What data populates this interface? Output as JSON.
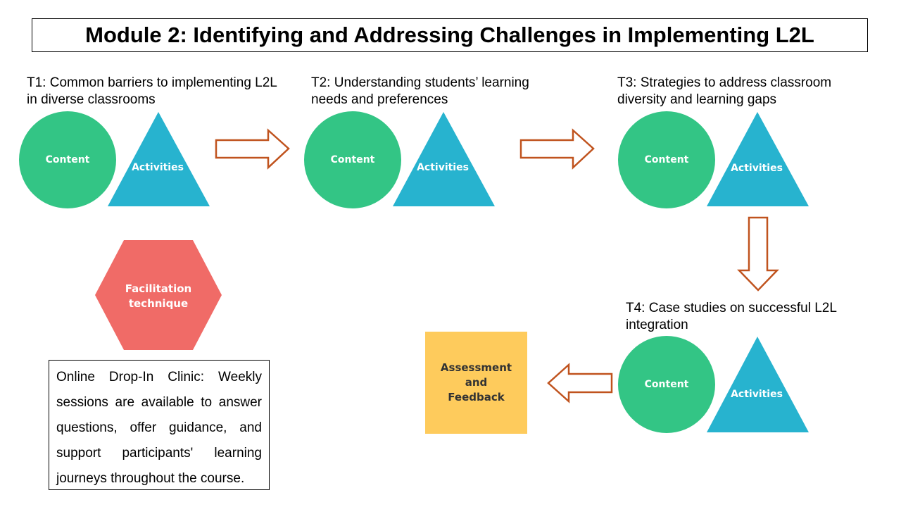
{
  "title": "Module 2: Identifying and Addressing Challenges in Implementing L2L",
  "topics": [
    {
      "label": "T1: Common barriers to implementing L2L in diverse classrooms",
      "content": "Content",
      "activities": "Activities"
    },
    {
      "label": "T2: Understanding students’ learning needs and preferences",
      "content": "Content",
      "activities": "Activities"
    },
    {
      "label": "T3: Strategies to address classroom diversity and learning gaps",
      "content": "Content",
      "activities": "Activities"
    },
    {
      "label": "T4: Case studies on successful L2L integration",
      "content": "Content",
      "activities": "Activities"
    }
  ],
  "facilitation": {
    "line1": "Facilitation",
    "line2": "technique"
  },
  "assessment": {
    "line1": "Assessment",
    "line2": "and",
    "line3": "Feedback"
  },
  "note": "Online Drop-In Clinic: Weekly sessions are available to answer questions, offer guidance, and support participants' learning journeys throughout the course.",
  "colors": {
    "content_circle": "#33C585",
    "activities_triangle": "#27B3CF",
    "facilitation_hexagon": "#F06B67",
    "assessment_square": "#FECB5C",
    "arrow_outline": "#C0531E"
  }
}
